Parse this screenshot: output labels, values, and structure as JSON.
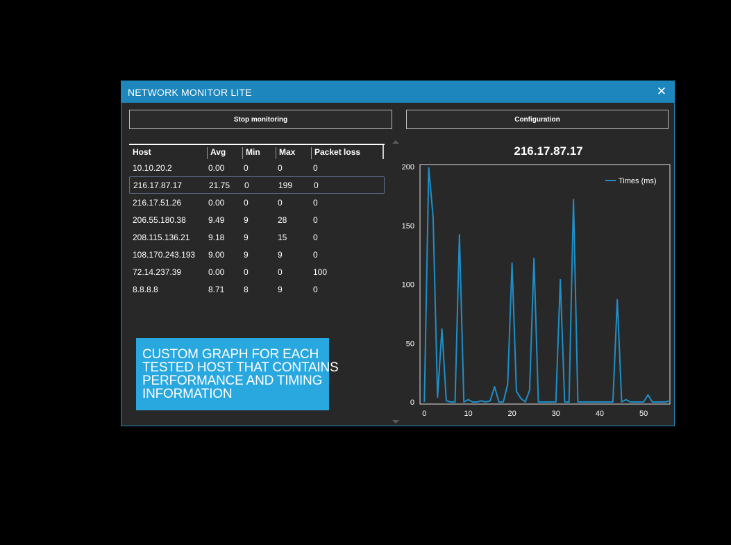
{
  "window": {
    "title": "NETWORK MONITOR LITE",
    "close_glyph": "✕",
    "accent_color": "#1c86bd"
  },
  "buttons": {
    "stop_label": "Stop monitoring",
    "config_label": "Configuration"
  },
  "table": {
    "columns": [
      "Host",
      "Avg",
      "Min",
      "Max",
      "Packet loss"
    ],
    "selected_index": 1,
    "rows": [
      {
        "host": "10.10.20.2",
        "avg": "0.00",
        "min": "0",
        "max": "0",
        "loss": "0"
      },
      {
        "host": "216.17.87.17",
        "avg": "21.75",
        "min": "0",
        "max": "199",
        "loss": "0"
      },
      {
        "host": "216.17.51.26",
        "avg": "0.00",
        "min": "0",
        "max": "0",
        "loss": "0"
      },
      {
        "host": "206.55.180.38",
        "avg": "9.49",
        "min": "9",
        "max": "28",
        "loss": "0"
      },
      {
        "host": "208.115.136.21",
        "avg": "9.18",
        "min": "9",
        "max": "15",
        "loss": "0"
      },
      {
        "host": "108.170.243.193",
        "avg": "9.00",
        "min": "9",
        "max": "9",
        "loss": "0"
      },
      {
        "host": "72.14.237.39",
        "avg": "0.00",
        "min": "0",
        "max": "0",
        "loss": "100"
      },
      {
        "host": "8.8.8.8",
        "avg": "8.71",
        "min": "8",
        "max": "9",
        "loss": "0"
      }
    ]
  },
  "promo": {
    "lines": [
      "CUSTOM GRAPH FOR EACH",
      "TESTED HOST THAT CONTAINS",
      "PERFORMANCE AND TIMING",
      "INFORMATION"
    ],
    "color": "#29a7df"
  },
  "chart_data": {
    "type": "line",
    "title": "216.17.87.17",
    "xlabel": "",
    "ylabel": "",
    "xlim": [
      -1,
      56
    ],
    "ylim": [
      0,
      200
    ],
    "x_ticks": [
      0,
      10,
      20,
      30,
      40,
      50
    ],
    "y_ticks": [
      0,
      50,
      100,
      150,
      200
    ],
    "grid": false,
    "legend_position": "top-right",
    "series": [
      {
        "name": "Times (ms)",
        "color": "#1f8fc9",
        "x": [
          0,
          1,
          2,
          3,
          4,
          5,
          6,
          7,
          8,
          9,
          10,
          11,
          12,
          13,
          14,
          15,
          16,
          17,
          18,
          19,
          20,
          21,
          22,
          23,
          24,
          25,
          26,
          27,
          28,
          29,
          30,
          31,
          32,
          33,
          34,
          35,
          36,
          37,
          38,
          39,
          40,
          41,
          42,
          43,
          44,
          45,
          46,
          47,
          48,
          49,
          50,
          51,
          52,
          53,
          54,
          55,
          56
        ],
        "values": [
          0,
          199,
          157,
          4,
          62,
          1,
          0,
          0,
          142,
          0,
          2,
          0,
          0,
          1,
          0,
          1,
          13,
          0,
          0,
          15,
          118,
          9,
          3,
          0,
          10,
          122,
          0,
          0,
          0,
          0,
          0,
          104,
          0,
          0,
          172,
          0,
          0,
          0,
          0,
          0,
          0,
          0,
          0,
          0,
          87,
          0,
          2,
          0,
          0,
          0,
          0,
          6,
          0,
          0,
          0,
          0,
          1
        ]
      }
    ]
  }
}
